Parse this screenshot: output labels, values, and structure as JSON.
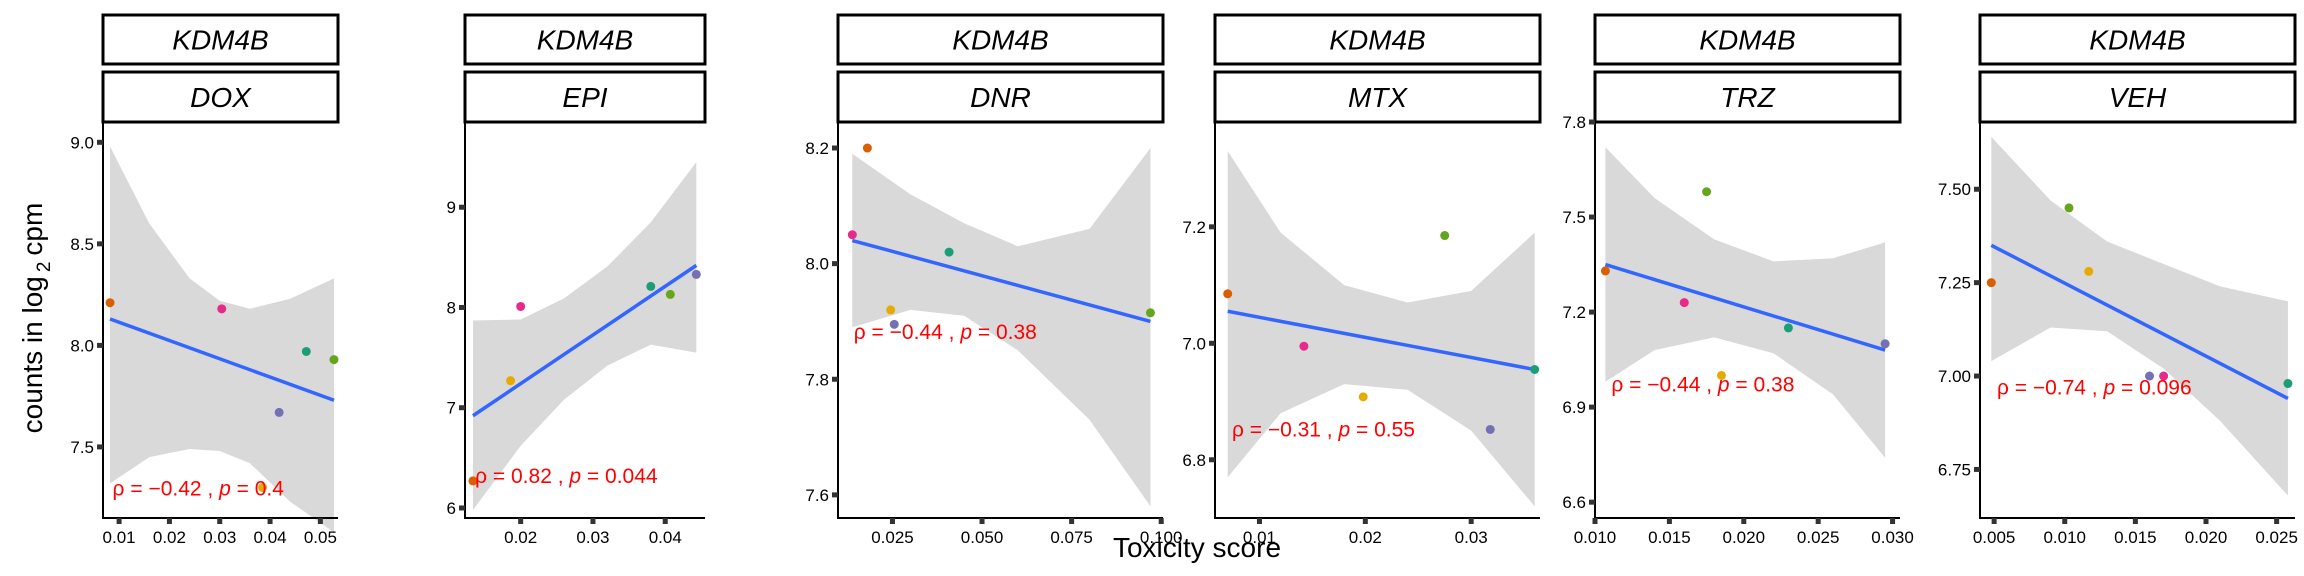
{
  "chart_data": {
    "type": "scatter",
    "xlabel": "Toxicity score",
    "ylabel": "counts in log 2 cpm",
    "ylabel_parts": {
      "pre": "counts in log",
      "sub": "2",
      "post": "cpm"
    },
    "colors": {
      "strip_fill": "#ffffff",
      "band": "#d9d9d9",
      "fit_line": "#3366ff",
      "stat_text": "#ff0000",
      "point_palette": [
        "#d95f02",
        "#e7298a",
        "#e6ab02",
        "#a6761d",
        "#1b9e77",
        "#7570b3",
        "#66a61e"
      ]
    },
    "panels": [
      {
        "gene": "KDM4B",
        "treatment": "DOX",
        "xlim": [
          0.0068,
          0.0535
        ],
        "ylim": [
          7.15,
          9.1
        ],
        "xticks": [
          0.01,
          0.02,
          0.03,
          0.04,
          0.05
        ],
        "xtick_labels": [
          "0.01",
          "0.02",
          "0.03",
          "0.04",
          "0.05"
        ],
        "yticks": [
          7.5,
          8.0,
          8.5,
          9.0
        ],
        "ytick_labels": [
          "7.5",
          "8.0",
          "8.5",
          "9.0"
        ],
        "points": [
          {
            "x": 0.0082,
            "y": 8.21,
            "color": "#d95f02"
          },
          {
            "x": 0.0304,
            "y": 8.18,
            "color": "#e7298a"
          },
          {
            "x": 0.0385,
            "y": 7.3,
            "color": "#e6ab02"
          },
          {
            "x": 0.0418,
            "y": 7.67,
            "color": "#7570b3"
          },
          {
            "x": 0.0472,
            "y": 7.97,
            "color": "#1b9e77"
          },
          {
            "x": 0.0527,
            "y": 7.93,
            "color": "#66a61e"
          }
        ],
        "fit": {
          "x": [
            0.0082,
            0.0527
          ],
          "y": [
            8.13,
            7.73
          ]
        },
        "band": {
          "x": [
            0.0082,
            0.016,
            0.024,
            0.03,
            0.036,
            0.044,
            0.0527
          ],
          "lower": [
            7.32,
            7.45,
            7.49,
            7.48,
            7.42,
            7.23,
            7.08
          ],
          "upper": [
            8.98,
            8.6,
            8.33,
            8.22,
            8.18,
            8.23,
            8.33
          ]
        },
        "stat": {
          "rho": "−0.42",
          "p": "0.4"
        },
        "stat_at": {
          "x": 0.0087,
          "y": 7.26
        }
      },
      {
        "gene": "KDM4B",
        "treatment": "EPI",
        "xlim": [
          0.0123,
          0.0455
        ],
        "ylim": [
          5.9,
          9.85
        ],
        "xticks": [
          0.02,
          0.03,
          0.04
        ],
        "xtick_labels": [
          "0.02",
          "0.03",
          "0.04"
        ],
        "yticks": [
          6,
          7,
          8,
          9
        ],
        "ytick_labels": [
          "6",
          "7",
          "8",
          "9"
        ],
        "points": [
          {
            "x": 0.0134,
            "y": 6.27,
            "color": "#d95f02"
          },
          {
            "x": 0.0186,
            "y": 7.27,
            "color": "#e6ab02"
          },
          {
            "x": 0.02,
            "y": 8.01,
            "color": "#e7298a"
          },
          {
            "x": 0.038,
            "y": 8.21,
            "color": "#1b9e77"
          },
          {
            "x": 0.0407,
            "y": 8.13,
            "color": "#66a61e"
          },
          {
            "x": 0.0443,
            "y": 8.33,
            "color": "#7570b3"
          }
        ],
        "fit": {
          "x": [
            0.0134,
            0.0443
          ],
          "y": [
            6.92,
            8.42
          ]
        },
        "band": {
          "x": [
            0.0134,
            0.02,
            0.026,
            0.032,
            0.038,
            0.0443
          ],
          "lower": [
            5.98,
            6.62,
            7.08,
            7.42,
            7.63,
            7.55
          ],
          "upper": [
            7.87,
            7.88,
            8.09,
            8.41,
            8.85,
            9.45
          ]
        },
        "stat": {
          "rho": "0.82",
          "p": "0.044"
        },
        "stat_at": {
          "x": 0.0137,
          "y": 6.25
        }
      },
      {
        "gene": "KDM4B",
        "treatment": "DNR",
        "xlim": [
          0.0098,
          0.1005
        ],
        "ylim": [
          7.56,
          8.245
        ],
        "xticks": [
          0.025,
          0.05,
          0.075,
          0.1
        ],
        "xtick_labels": [
          "0.025",
          "0.050",
          "0.075",
          "0.100"
        ],
        "yticks": [
          7.6,
          7.8,
          8.0,
          8.2
        ],
        "ytick_labels": [
          "7.6",
          "7.8",
          "8.0",
          "8.2"
        ],
        "points": [
          {
            "x": 0.0138,
            "y": 8.05,
            "color": "#e7298a"
          },
          {
            "x": 0.018,
            "y": 8.2,
            "color": "#d95f02"
          },
          {
            "x": 0.0245,
            "y": 7.92,
            "color": "#e6ab02"
          },
          {
            "x": 0.0255,
            "y": 7.895,
            "color": "#7570b3"
          },
          {
            "x": 0.0408,
            "y": 8.02,
            "color": "#1b9e77"
          },
          {
            "x": 0.097,
            "y": 7.915,
            "color": "#66a61e"
          }
        ],
        "fit": {
          "x": [
            0.0138,
            0.097
          ],
          "y": [
            8.04,
            7.9
          ]
        },
        "band": {
          "x": [
            0.0138,
            0.03,
            0.045,
            0.06,
            0.08,
            0.097
          ],
          "lower": [
            7.89,
            7.92,
            7.91,
            7.85,
            7.73,
            7.58
          ],
          "upper": [
            8.19,
            8.12,
            8.07,
            8.03,
            8.06,
            8.2
          ]
        },
        "stat": {
          "rho": "−0.44",
          "p": "0.38"
        },
        "stat_at": {
          "x": 0.0142,
          "y": 7.87
        }
      },
      {
        "gene": "KDM4B",
        "treatment": "MTX",
        "xlim": [
          0.0058,
          0.0365
        ],
        "ylim": [
          6.7,
          7.38
        ],
        "xticks": [
          0.01,
          0.02,
          0.03
        ],
        "xtick_labels": [
          "0.01",
          "0.02",
          "0.03"
        ],
        "yticks": [
          6.8,
          7.0,
          7.2
        ],
        "ytick_labels": [
          "6.8",
          "7.0",
          "7.2"
        ],
        "points": [
          {
            "x": 0.007,
            "y": 7.085,
            "color": "#d95f02"
          },
          {
            "x": 0.0142,
            "y": 6.995,
            "color": "#e7298a"
          },
          {
            "x": 0.0198,
            "y": 6.908,
            "color": "#e6ab02"
          },
          {
            "x": 0.0275,
            "y": 7.185,
            "color": "#66a61e"
          },
          {
            "x": 0.0318,
            "y": 6.852,
            "color": "#7570b3"
          },
          {
            "x": 0.036,
            "y": 6.955,
            "color": "#1b9e77"
          }
        ],
        "fit": {
          "x": [
            0.007,
            0.036
          ],
          "y": [
            7.055,
            6.955
          ]
        },
        "band": {
          "x": [
            0.007,
            0.012,
            0.018,
            0.024,
            0.03,
            0.036
          ],
          "lower": [
            6.77,
            6.88,
            6.93,
            6.92,
            6.85,
            6.72
          ],
          "upper": [
            7.33,
            7.19,
            7.1,
            7.07,
            7.09,
            7.19
          ]
        },
        "stat": {
          "rho": "−0.31",
          "p": "0.55"
        },
        "stat_at": {
          "x": 0.0074,
          "y": 6.84
        }
      },
      {
        "gene": "KDM4B",
        "treatment": "TRZ",
        "xlim": [
          0.01,
          0.0305
        ],
        "ylim": [
          6.55,
          7.8
        ],
        "xticks": [
          0.01,
          0.015,
          0.02,
          0.025,
          0.03
        ],
        "xtick_labels": [
          "0.010",
          "0.015",
          "0.020",
          "0.025",
          "0.030"
        ],
        "yticks": [
          6.6,
          6.9,
          7.2,
          7.5,
          7.8
        ],
        "ytick_labels": [
          "6.6",
          "6.9",
          "7.2",
          "7.5",
          "7.8"
        ],
        "points": [
          {
            "x": 0.0107,
            "y": 7.33,
            "color": "#d95f02"
          },
          {
            "x": 0.016,
            "y": 7.23,
            "color": "#e7298a"
          },
          {
            "x": 0.0175,
            "y": 7.58,
            "color": "#66a61e"
          },
          {
            "x": 0.0185,
            "y": 7.0,
            "color": "#e6ab02"
          },
          {
            "x": 0.023,
            "y": 7.15,
            "color": "#1b9e77"
          },
          {
            "x": 0.0295,
            "y": 7.1,
            "color": "#7570b3"
          }
        ],
        "fit": {
          "x": [
            0.0107,
            0.0295
          ],
          "y": [
            7.35,
            7.08
          ]
        },
        "band": {
          "x": [
            0.0107,
            0.014,
            0.018,
            0.022,
            0.026,
            0.0295
          ],
          "lower": [
            6.98,
            7.08,
            7.12,
            7.07,
            6.94,
            6.74
          ],
          "upper": [
            7.72,
            7.56,
            7.43,
            7.36,
            7.37,
            7.42
          ]
        },
        "stat": {
          "rho": "−0.44",
          "p": "0.38"
        },
        "stat_at": {
          "x": 0.0111,
          "y": 6.95
        }
      },
      {
        "gene": "KDM4B",
        "treatment": "VEH",
        "xlim": [
          0.004,
          0.0263
        ],
        "ylim": [
          6.62,
          7.68
        ],
        "xticks": [
          0.005,
          0.01,
          0.015,
          0.02,
          0.025
        ],
        "xtick_labels": [
          "0.005",
          "0.010",
          "0.015",
          "0.020",
          "0.025"
        ],
        "yticks": [
          6.75,
          7.0,
          7.25,
          7.5
        ],
        "ytick_labels": [
          "6.75",
          "7.00",
          "7.25",
          "7.50"
        ],
        "points": [
          {
            "x": 0.0048,
            "y": 7.25,
            "color": "#d95f02"
          },
          {
            "x": 0.0103,
            "y": 7.45,
            "color": "#66a61e"
          },
          {
            "x": 0.0117,
            "y": 7.28,
            "color": "#e6ab02"
          },
          {
            "x": 0.016,
            "y": 7.0,
            "color": "#7570b3"
          },
          {
            "x": 0.017,
            "y": 7.0,
            "color": "#e7298a"
          },
          {
            "x": 0.0258,
            "y": 6.98,
            "color": "#1b9e77"
          }
        ],
        "fit": {
          "x": [
            0.0048,
            0.0258
          ],
          "y": [
            7.35,
            6.94
          ]
        },
        "band": {
          "x": [
            0.0048,
            0.009,
            0.013,
            0.017,
            0.021,
            0.0258
          ],
          "lower": [
            7.04,
            7.13,
            7.12,
            7.02,
            6.88,
            6.68
          ],
          "upper": [
            7.64,
            7.47,
            7.36,
            7.3,
            7.24,
            7.2
          ]
        },
        "stat": {
          "rho": "−0.74",
          "p": "0.096"
        },
        "stat_at": {
          "x": 0.0052,
          "y": 6.95
        }
      }
    ]
  }
}
